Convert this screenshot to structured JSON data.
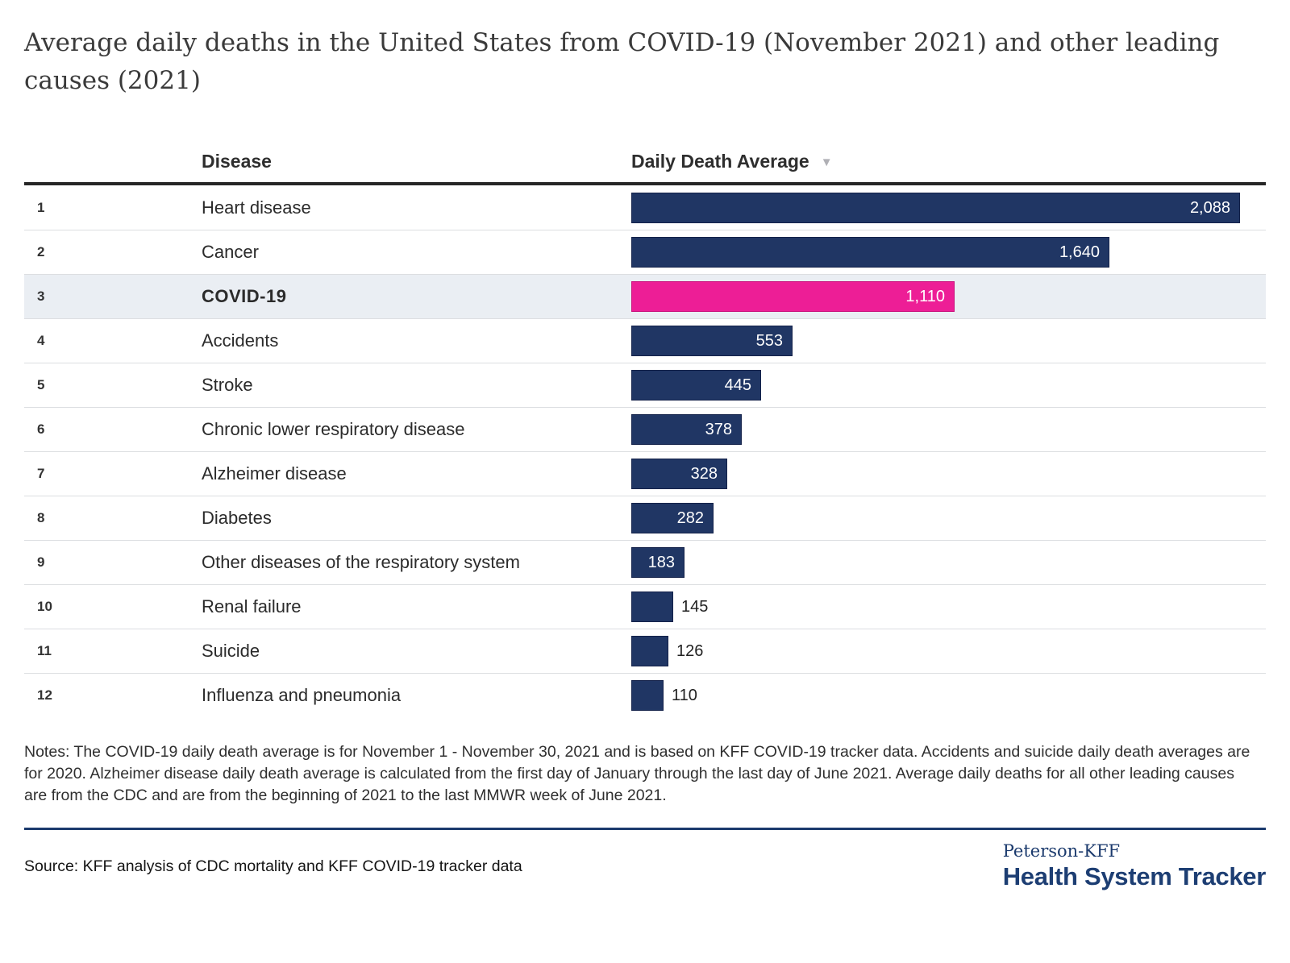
{
  "title": "Average daily deaths in the United States from COVID-19 (November 2021) and other leading causes (2021)",
  "columns": {
    "disease": "Disease",
    "value": "Daily Death Average",
    "sort_icon": "▼"
  },
  "chart_data": {
    "type": "bar",
    "orientation": "horizontal",
    "ranks": [
      1,
      2,
      3,
      4,
      5,
      6,
      7,
      8,
      9,
      10,
      11,
      12
    ],
    "categories": [
      "Heart disease",
      "Cancer",
      "COVID-19",
      "Accidents",
      "Stroke",
      "Chronic lower respiratory disease",
      "Alzheimer disease",
      "Diabetes",
      "Other diseases of the respiratory system",
      "Renal failure",
      "Suicide",
      "Influenza and pneumonia"
    ],
    "values": [
      2088,
      1640,
      1110,
      553,
      445,
      378,
      328,
      282,
      183,
      145,
      126,
      110
    ],
    "value_labels": [
      "2,088",
      "1,640",
      "1,110",
      "553",
      "445",
      "378",
      "328",
      "282",
      "183",
      "145",
      "126",
      "110"
    ],
    "highlight_index": 2,
    "bar_color": "#203664",
    "highlight_color": "#ed1e96",
    "xlim": [
      0,
      2088
    ],
    "sort": "descending",
    "title": "Average daily deaths in the United States from COVID-19 (November 2021) and other leading causes (2021)",
    "xlabel": "Daily Death Average",
    "ylabel": "Disease"
  },
  "notes": "Notes: The COVID-19 daily death average is for November 1 - November 30, 2021 and is based on KFF COVID-19 tracker data. Accidents and suicide daily death averages are for 2020. Alzheimer disease daily death average is calculated from the first day of January through the last day of June 2021. Average daily deaths for all other leading causes are from the CDC and are from the beginning of 2021 to the last MMWR week of June 2021.",
  "source": "Source: KFF analysis of CDC mortality and KFF COVID-19 tracker data",
  "logo": {
    "top": "Peterson-KFF",
    "bottom": "Health System Tracker"
  },
  "colors": {
    "bar_navy": "#203664",
    "bar_pink": "#ed1e96",
    "highlight_row_bg": "#eaeef3",
    "brand_navy": "#1b3a6d",
    "header_line": "#262626",
    "row_divider": "#dcdee1"
  }
}
